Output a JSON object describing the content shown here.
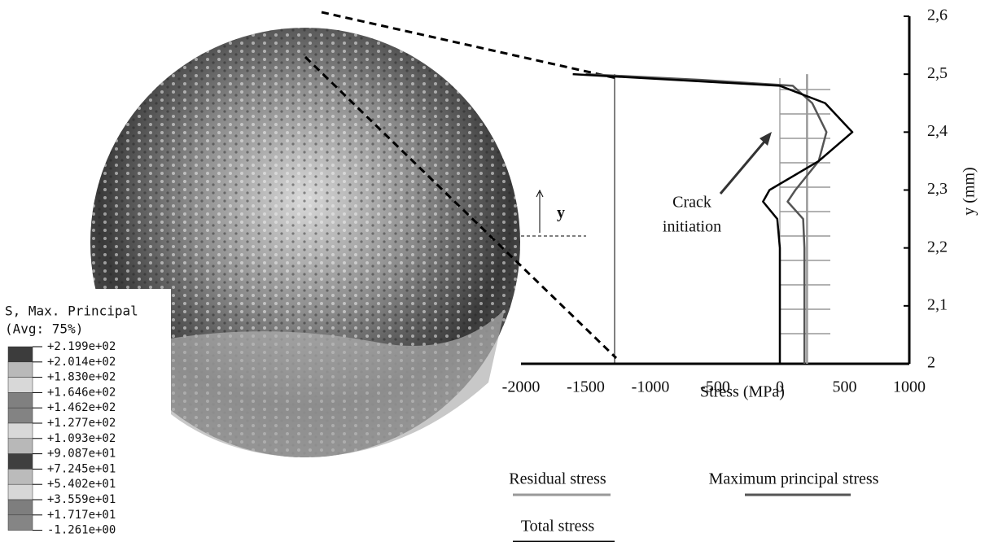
{
  "chart_data": {
    "type": "line",
    "x_label": "Stress (MPa)",
    "y_label": "y (mm)",
    "xlim": [
      -2000,
      1000
    ],
    "xticks": [
      -2000,
      -1500,
      -1000,
      -500,
      0,
      500,
      1000
    ],
    "ylim": [
      2,
      2.6
    ],
    "yticks": [
      2,
      {
        "value": 2.1,
        "label": "2,1"
      },
      {
        "value": 2.2,
        "label": "2,2"
      },
      {
        "value": 2.3,
        "label": "2,3"
      },
      {
        "value": 2.4,
        "label": "2,4"
      },
      {
        "value": 2.5,
        "label": "2,5"
      },
      {
        "value": 2.6,
        "label": "2,6"
      }
    ],
    "y": [
      2.0,
      2.1,
      2.2,
      2.25,
      2.28,
      2.3,
      2.35,
      2.4,
      2.45,
      2.48,
      2.49,
      2.5
    ],
    "series": [
      {
        "name": "Residual stress",
        "color": "#999999",
        "values": [
          210,
          210,
          210,
          210,
          210,
          210,
          210,
          210,
          210,
          210,
          210,
          210
        ]
      },
      {
        "name": "Maximum principal stress",
        "color": "#555555",
        "values": [
          190,
          190,
          190,
          180,
          60,
          120,
          300,
          360,
          250,
          100,
          -600,
          -1500
        ]
      },
      {
        "name": "Total stress",
        "color": "#000000",
        "values": [
          0,
          0,
          0,
          -20,
          -130,
          -80,
          300,
          560,
          350,
          0,
          -800,
          -1600
        ]
      }
    ],
    "annotation": [
      "Crack",
      "initiation"
    ],
    "marker_label": "y"
  },
  "contour_legend": {
    "title": "S, Max. Principal",
    "subtitle": "(Avg: 75%)",
    "labels": [
      "+2.199e+02",
      "+2.014e+02",
      "+1.830e+02",
      "+1.646e+02",
      "+1.462e+02",
      "+1.277e+02",
      "+1.093e+02",
      "+9.087e+01",
      "+7.245e+01",
      "+5.402e+01",
      "+3.559e+01",
      "+1.717e+01",
      "-1.261e+00"
    ]
  }
}
